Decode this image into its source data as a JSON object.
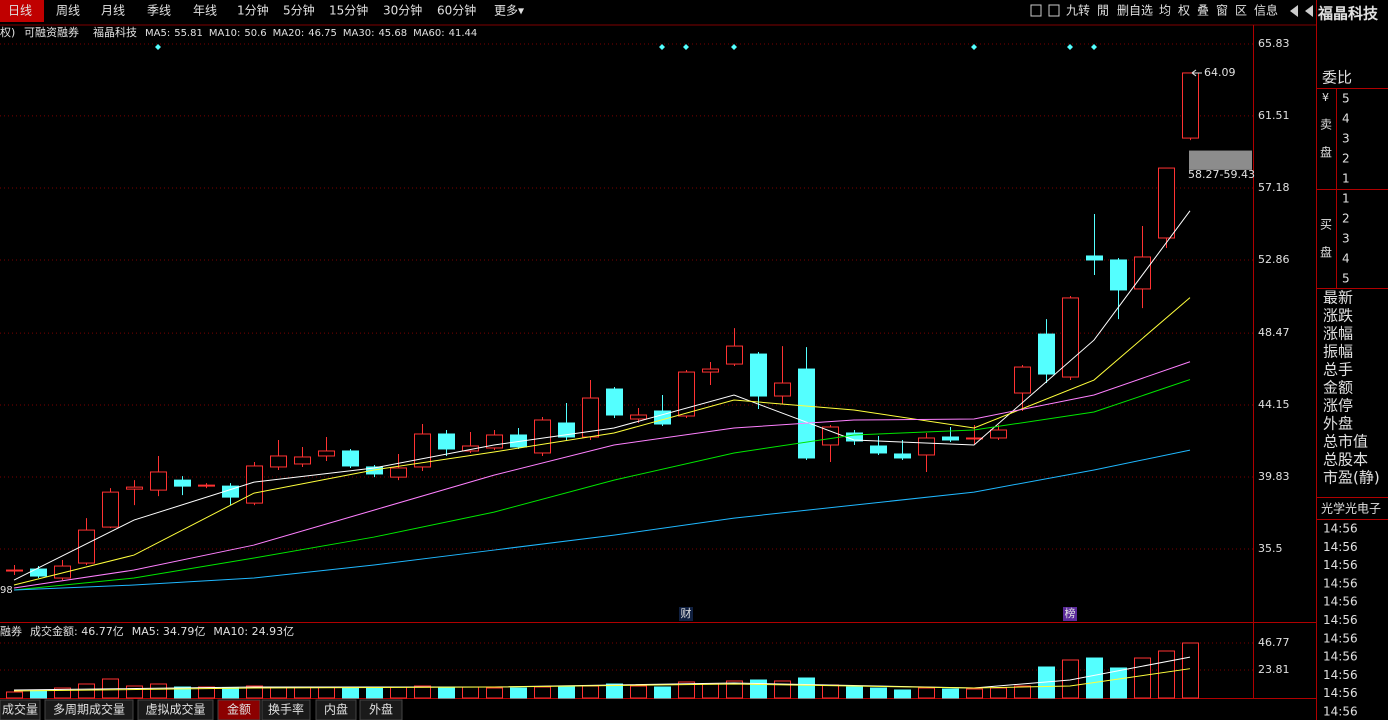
{
  "toolbar": {
    "tabs": [
      "日线",
      "周线",
      "月线",
      "季线",
      "年线",
      "1分钟",
      "5分钟",
      "15分钟",
      "30分钟",
      "60分钟",
      "更多▾"
    ],
    "active": 0,
    "tools": [
      "九转",
      "閒",
      "删自选",
      "均",
      "权",
      "叠",
      "窗",
      "区",
      "信息"
    ],
    "stock_name": "福晶科技"
  },
  "info_bar": {
    "prefix": "权)",
    "tag": "可融资融券",
    "name": "福晶科技"
  },
  "chart_data": [
    {
      "type": "candlestick",
      "up_color": "#ff3232",
      "down_color": "#54ffff",
      "grid": true,
      "ylim": [
        31.12,
        66.91
      ],
      "yticks": [
        65.83,
        61.51,
        57.18,
        52.86,
        48.47,
        44.15,
        39.83,
        35.5
      ],
      "open": [
        34.24,
        34.3,
        33.76,
        34.66,
        36.82,
        39.1,
        39.04,
        39.64,
        39.28,
        39.28,
        38.26,
        40.43,
        40.61,
        41.09,
        41.39,
        40.43,
        39.82,
        40.43,
        42.41,
        41.39,
        41.57,
        42.35,
        41.27,
        43.07,
        42.23,
        45.11,
        43.31,
        43.79,
        43.49,
        46.13,
        46.61,
        47.21,
        44.69,
        46.31,
        41.75,
        42.47,
        41.69,
        41.21,
        41.15,
        42.23,
        42.11,
        42.17,
        44.87,
        48.41,
        45.83,
        53.1,
        52.86,
        51.12,
        54.18,
        60.18
      ],
      "high": [
        34.54,
        34.48,
        34.84,
        37.36,
        39.16,
        39.64,
        41.09,
        39.88,
        39.46,
        39.46,
        40.73,
        42.05,
        41.63,
        42.23,
        41.51,
        40.55,
        41.21,
        43.01,
        42.65,
        42.53,
        42.65,
        42.77,
        43.43,
        44.27,
        45.65,
        45.23,
        43.97,
        44.75,
        46.25,
        46.73,
        48.77,
        47.33,
        47.69,
        47.63,
        42.95,
        42.65,
        42.29,
        42.05,
        42.47,
        42.83,
        42.95,
        42.95,
        46.55,
        49.31,
        50.7,
        55.62,
        52.98,
        54.9,
        58.38,
        64.09
      ],
      "low": [
        33.94,
        33.76,
        33.64,
        34.54,
        36.76,
        38.14,
        38.68,
        38.74,
        39.16,
        38.14,
        38.14,
        40.25,
        40.43,
        40.79,
        40.37,
        39.82,
        39.64,
        40.19,
        41.09,
        41.27,
        41.45,
        41.51,
        41.09,
        41.99,
        42.05,
        43.37,
        43.07,
        42.89,
        43.37,
        45.35,
        46.49,
        43.91,
        44.21,
        40.85,
        40.73,
        41.75,
        41.15,
        40.85,
        40.13,
        41.93,
        41.81,
        42.05,
        43.79,
        45.47,
        45.65,
        51.96,
        49.31,
        49.97,
        53.58,
        60.06
      ],
      "close": [
        34.24,
        33.88,
        34.48,
        36.64,
        38.92,
        39.22,
        40.13,
        39.28,
        39.34,
        38.62,
        40.49,
        41.09,
        41.03,
        41.39,
        40.49,
        40.01,
        40.37,
        42.41,
        41.51,
        41.69,
        42.35,
        41.63,
        43.25,
        42.23,
        44.57,
        43.55,
        43.55,
        43.01,
        46.13,
        46.31,
        47.69,
        44.69,
        45.47,
        40.97,
        42.83,
        41.99,
        41.27,
        40.97,
        42.17,
        42.05,
        42.17,
        42.65,
        46.43,
        46.01,
        50.58,
        52.86,
        51.06,
        53.04,
        58.38,
        64.09
      ],
      "ma": [
        {
          "name": "MA5:",
          "color": "#ffffff",
          "x": [
            0,
            5,
            10,
            15,
            20,
            25,
            30,
            35,
            40,
            45,
            49
          ],
          "values": [
            33.64,
            37.24,
            39.52,
            40.37,
            41.75,
            42.77,
            44.75,
            42.05,
            41.75,
            48.05,
            55.81
          ]
        },
        {
          "name": "MA10:",
          "color": "#ffff3c",
          "x": [
            0,
            5,
            10,
            15,
            20,
            25,
            30,
            35,
            40,
            45,
            49
          ],
          "values": [
            33.34,
            35.14,
            38.86,
            40.25,
            41.33,
            42.47,
            44.45,
            43.85,
            42.77,
            45.65,
            50.6
          ]
        },
        {
          "name": "MA20:",
          "color": "#ff80ff",
          "x": [
            0,
            5,
            10,
            15,
            20,
            25,
            30,
            35,
            40,
            45,
            49
          ],
          "values": [
            33.16,
            34.24,
            35.74,
            37.84,
            39.94,
            41.75,
            42.77,
            43.25,
            43.31,
            44.75,
            46.75
          ]
        },
        {
          "name": "MA30:",
          "color": "#00e600",
          "x": [
            0,
            5,
            10,
            15,
            20,
            25,
            30,
            35,
            40,
            45,
            49
          ],
          "values": [
            33.04,
            33.76,
            34.96,
            36.22,
            37.72,
            39.64,
            41.27,
            42.35,
            42.65,
            43.73,
            45.68
          ]
        },
        {
          "name": "MA60:",
          "color": "#1fb8ff",
          "x": [
            0,
            5,
            10,
            15,
            20,
            25,
            30,
            35,
            40,
            45,
            49
          ],
          "values": [
            33.04,
            33.34,
            33.76,
            34.54,
            35.44,
            36.34,
            37.36,
            38.14,
            38.92,
            40.25,
            41.44
          ]
        }
      ],
      "last_label": "64.09",
      "range_box": {
        "low": 58.27,
        "high": 59.43,
        "label": "58.27-59.43"
      },
      "left_cut_label": "98",
      "events": [
        {
          "index": 28,
          "label": "财"
        },
        {
          "index": 44,
          "label": "榜"
        }
      ]
    },
    {
      "type": "bar",
      "ylim": [
        0,
        62.08
      ],
      "yticks": [
        46.77,
        23.81
      ],
      "values": [
        5.1,
        6.8,
        8.5,
        11.91,
        16.16,
        10.2,
        11.91,
        9.35,
        9.35,
        8.5,
        10.2,
        9.35,
        9.35,
        9.35,
        8.5,
        8.5,
        9.35,
        10.2,
        9.35,
        9.35,
        8.5,
        8.5,
        9.35,
        9.35,
        10.2,
        11.91,
        10.2,
        9.35,
        13.61,
        11.91,
        14.46,
        15.31,
        14.46,
        17.01,
        11.06,
        9.35,
        8.5,
        6.8,
        8.5,
        7.65,
        7.65,
        8.5,
        10.2,
        26.36,
        32.32,
        34.0,
        25.51,
        34.0,
        39.97,
        46.77
      ],
      "ma": [
        {
          "name": "MA5",
          "color": "#ffffff",
          "x": [
            0,
            10,
            20,
            30,
            40,
            44,
            49
          ],
          "values": [
            6.8,
            9.35,
            9.35,
            12.76,
            8.5,
            15.31,
            34.79
          ]
        },
        {
          "name": "MA10",
          "color": "#ffff3c",
          "x": [
            0,
            10,
            20,
            30,
            40,
            44,
            49
          ],
          "values": [
            5.95,
            8.5,
            9.35,
            11.91,
            8.5,
            10.2,
            24.93
          ]
        }
      ],
      "header": [
        "融券",
        "成交金额: 46.77亿",
        "MA5: 34.79亿",
        "MA10: 24.93亿"
      ]
    }
  ],
  "side_panel": {
    "title": "委比",
    "currency": "¥",
    "sell": [
      "卖",
      "盘"
    ],
    "sell_levels": [
      "5",
      "4",
      "3",
      "2",
      "1"
    ],
    "buy": [
      "买",
      "盘"
    ],
    "buy_levels": [
      "1",
      "2",
      "3",
      "4",
      "5"
    ],
    "fields": [
      "最新",
      "涨跌",
      "涨幅",
      "振幅",
      "总手",
      "金额",
      "涨停",
      "外盘",
      "总市值",
      "总股本",
      "市盈(静)"
    ],
    "industry": "光学光电子",
    "times": [
      "14:56",
      "14:56",
      "14:56",
      "14:56",
      "14:56",
      "14:56",
      "14:56",
      "14:56",
      "14:56",
      "14:56",
      "14:56"
    ]
  },
  "bottom_tabs": {
    "tabs": [
      "成交量",
      "多周期成交量",
      "虚拟成交量",
      "金额",
      "换手率",
      "内盘",
      "外盘"
    ],
    "active": 3
  }
}
